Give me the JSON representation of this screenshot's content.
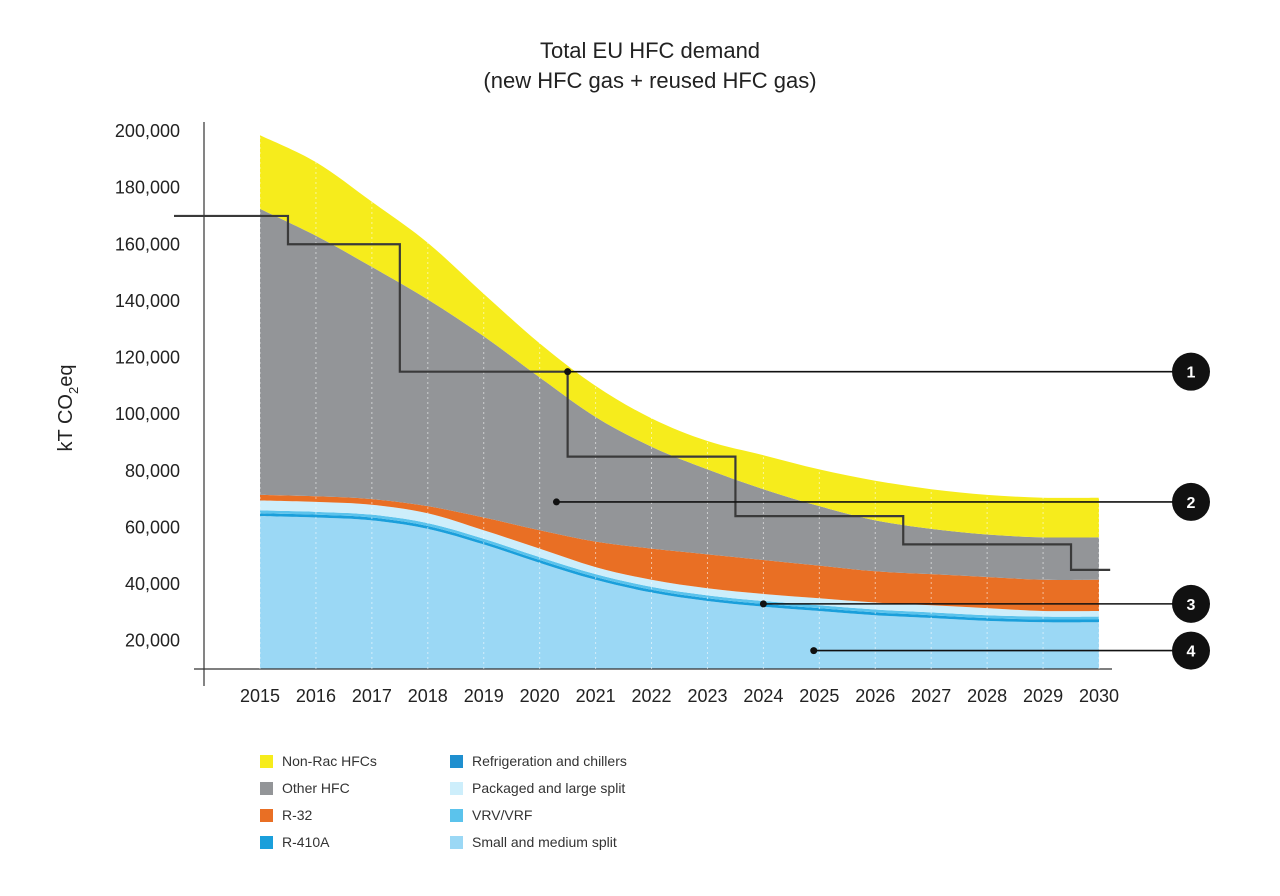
{
  "chart_data": {
    "type": "area",
    "title_line1": "Total EU HFC demand",
    "title_line2": "(new HFC gas + reused HFC gas)",
    "ylabel": "kT CO",
    "ylabel_sub": "2",
    "ylabel_suffix": "eq",
    "ylim": [
      10000,
      200000
    ],
    "yticks": [
      "20,000",
      "40,000",
      "60,000",
      "80,000",
      "100,000",
      "120,000",
      "140,000",
      "160,000",
      "180,000",
      "200,000"
    ],
    "ytick_values": [
      20000,
      40000,
      60000,
      80000,
      100000,
      120000,
      140000,
      160000,
      180000,
      200000
    ],
    "x": [
      2015,
      2016,
      2017,
      2018,
      2019,
      2020,
      2021,
      2022,
      2023,
      2024,
      2025,
      2026,
      2027,
      2028,
      2029,
      2030
    ],
    "xtick_labels": [
      "2015",
      "2016",
      "2017",
      "2018",
      "2019",
      "2020",
      "2021",
      "2022",
      "2023",
      "2024",
      "2025",
      "2026",
      "2027",
      "2028",
      "2029",
      "2030"
    ],
    "series": [
      {
        "name": "Small and medium split",
        "color": "#9bd8f5",
        "values": [
          54000,
          53500,
          52500,
          49500,
          44000,
          37500,
          31500,
          27000,
          24000,
          22000,
          20500,
          19000,
          18000,
          17000,
          16500,
          16500
        ]
      },
      {
        "name": "R-410A",
        "color": "#1a9fdb",
        "values": [
          1000,
          1000,
          1000,
          1000,
          1000,
          1000,
          1000,
          1000,
          1000,
          1000,
          1000,
          1000,
          1000,
          1000,
          1000,
          1000
        ]
      },
      {
        "name": "VRV/VRF",
        "color": "#5bc3ec",
        "values": [
          1000,
          1000,
          1000,
          1000,
          1000,
          1000,
          1000,
          1000,
          1000,
          1000,
          1000,
          1000,
          1000,
          1000,
          1000,
          1000
        ]
      },
      {
        "name": "Packaged and large split",
        "color": "#cdeefb",
        "values": [
          3500,
          3500,
          3500,
          3500,
          3000,
          3000,
          2500,
          2500,
          2500,
          2500,
          2500,
          2500,
          2500,
          2500,
          2000,
          2000
        ]
      },
      {
        "name": "Refrigeration and chillers",
        "color": "#1f8fcf",
        "values": [
          0,
          0,
          0,
          0,
          0,
          0,
          0,
          0,
          0,
          0,
          0,
          0,
          0,
          0,
          0,
          0
        ]
      },
      {
        "name": "R-32",
        "color": "#e96f24",
        "values": [
          2000,
          2000,
          2000,
          2500,
          4500,
          6500,
          9000,
          11000,
          12000,
          12000,
          11500,
          11000,
          11000,
          11000,
          11000,
          11000
        ]
      },
      {
        "name": "Other HFC",
        "color": "#939598",
        "values": [
          101000,
          92000,
          82000,
          73000,
          64000,
          54000,
          44000,
          36000,
          30000,
          25000,
          21000,
          18000,
          16000,
          15000,
          15000,
          15000
        ]
      },
      {
        "name": "Non-Rac HFCs",
        "color": "#f6ec1c",
        "values": [
          26000,
          26000,
          23000,
          20000,
          15000,
          12000,
          11000,
          10000,
          10000,
          12000,
          13000,
          14000,
          14000,
          14000,
          14000,
          14000
        ]
      }
    ],
    "phase_down_step": {
      "color": "#3a3a3a",
      "points": [
        [
          2014,
          170000
        ],
        [
          2015.5,
          170000
        ],
        [
          2015.5,
          160000
        ],
        [
          2017.5,
          160000
        ],
        [
          2017.5,
          115000
        ],
        [
          2020.5,
          115000
        ],
        [
          2020.5,
          85000
        ],
        [
          2023.5,
          85000
        ],
        [
          2023.5,
          64000
        ],
        [
          2026.5,
          64000
        ],
        [
          2026.5,
          54000
        ],
        [
          2029.5,
          54000
        ],
        [
          2029.5,
          45000
        ],
        [
          2030.2,
          45000
        ]
      ]
    },
    "annotations": [
      {
        "label": "1",
        "x": 2020.5,
        "y": 115000
      },
      {
        "label": "2",
        "x": 2020.3,
        "y": 69000
      },
      {
        "label": "3",
        "x": 2024.0,
        "y": 33000
      },
      {
        "label": "4",
        "x": 2024.9,
        "y": 16500
      }
    ],
    "legend": {
      "placement": "bottom-left",
      "items": [
        {
          "label": "Non-Rac HFCs",
          "color": "#f6ec1c"
        },
        {
          "label": "Refrigeration and chillers",
          "color": "#1f8fcf"
        },
        {
          "label": "Other HFC",
          "color": "#939598"
        },
        {
          "label": "Packaged and large split",
          "color": "#cdeefb"
        },
        {
          "label": "R-32",
          "color": "#e96f24"
        },
        {
          "label": "VRV/VRF",
          "color": "#5bc3ec"
        },
        {
          "label": "R-410A",
          "color": "#1a9fdb"
        },
        {
          "label": "Small and medium split",
          "color": "#9bd8f5"
        }
      ]
    }
  }
}
